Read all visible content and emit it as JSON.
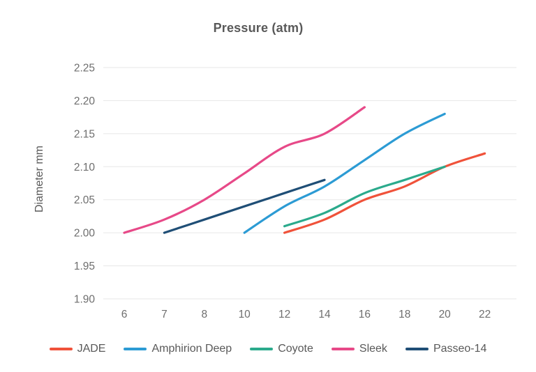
{
  "chart": {
    "title": "Pressure (atm)",
    "y_axis_label": "Diameter mm"
  },
  "chart_data": {
    "type": "line",
    "title": "Pressure (atm)",
    "xlabel": "",
    "ylabel": "Diameter mm",
    "x_categories": [
      6,
      7,
      8,
      10,
      12,
      14,
      16,
      18,
      20,
      22
    ],
    "ylim": [
      1.9,
      2.25
    ],
    "y_ticks": [
      2.25,
      2.2,
      2.15,
      2.1,
      2.05,
      2.0,
      1.95,
      1.9
    ],
    "grid": "horizontal-only",
    "legend_position": "bottom",
    "colors": {
      "grid_line": "#e7e7e7",
      "tick_text": "#6e6e6e",
      "title_text": "#595959"
    },
    "series": [
      {
        "name": "JADE",
        "color": "#f0523a",
        "x": [
          12,
          14,
          16,
          18,
          20,
          22
        ],
        "y": [
          2.0,
          2.02,
          2.05,
          2.07,
          2.1,
          2.12
        ]
      },
      {
        "name": "Amphirion Deep",
        "color": "#2c9bd4",
        "x": [
          10,
          12,
          14,
          16,
          18,
          20
        ],
        "y": [
          2.0,
          2.04,
          2.07,
          2.11,
          2.15,
          2.18
        ]
      },
      {
        "name": "Coyote",
        "color": "#2baa8c",
        "x": [
          12,
          14,
          16,
          18,
          20
        ],
        "y": [
          2.01,
          2.03,
          2.06,
          2.08,
          2.1
        ]
      },
      {
        "name": "Sleek",
        "color": "#e74988",
        "x": [
          6,
          7,
          8,
          10,
          12,
          14,
          16
        ],
        "y": [
          2.0,
          2.02,
          2.05,
          2.09,
          2.13,
          2.15,
          2.19
        ]
      },
      {
        "name": "Passeo-14",
        "color": "#1f4e76",
        "x": [
          7,
          8,
          10,
          12,
          14
        ],
        "y": [
          2.0,
          2.02,
          2.04,
          2.06,
          2.08
        ]
      }
    ]
  }
}
